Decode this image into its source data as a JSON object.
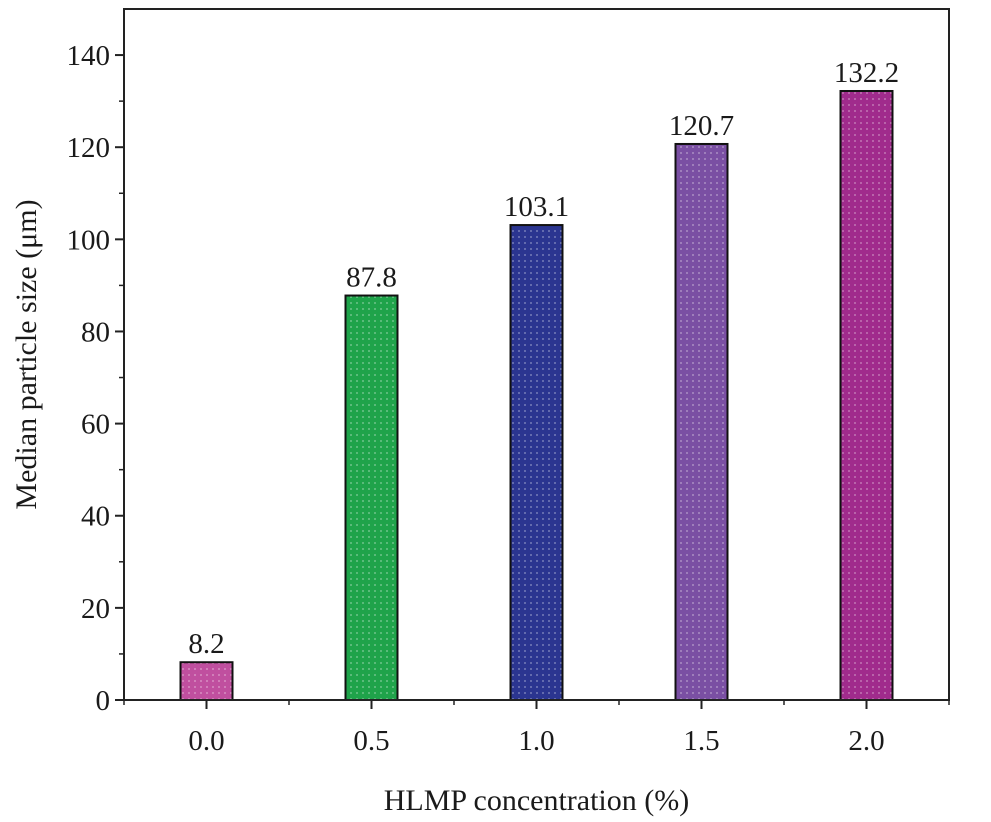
{
  "chart_data": {
    "type": "bar",
    "title": "",
    "xlabel": "HLMP concentration (%)",
    "ylabel": "Median particle size (μm)",
    "categories": [
      "0.0",
      "0.5",
      "1.0",
      "1.5",
      "2.0"
    ],
    "values": [
      8.2,
      87.8,
      103.1,
      120.7,
      132.2
    ],
    "data_labels": [
      "8.2",
      "87.8",
      "103.1",
      "120.7",
      "132.2"
    ],
    "bar_colors": [
      "#c04f9f",
      "#1fa34a",
      "#2b3590",
      "#7a4fa3",
      "#a02b8c"
    ],
    "ylim": [
      0,
      150
    ],
    "yticks": [
      0,
      20,
      40,
      60,
      80,
      100,
      120,
      140
    ],
    "ytick_labels": [
      "0",
      "20",
      "40",
      "60",
      "80",
      "100",
      "120",
      "140"
    ],
    "grid": false,
    "legend": false
  }
}
